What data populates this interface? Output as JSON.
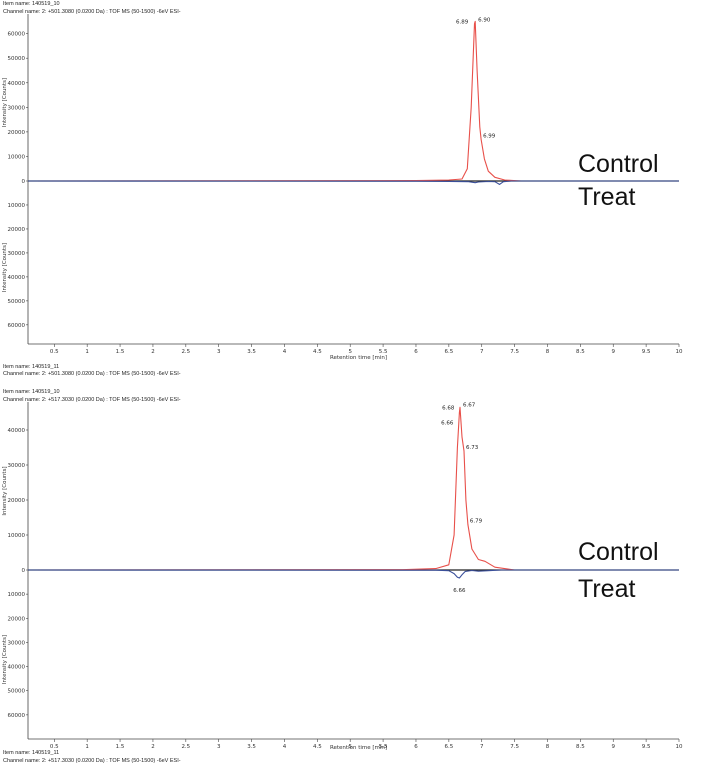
{
  "panel1": {
    "header": {
      "item": "Item name: 140519_10",
      "channel": "Channel name: 2: +501.3080 (0.0200 Da) : TOF MS (50-1500) -6eV ESI-"
    },
    "footer": {
      "item": "Item name: 140519_11",
      "channel": "Channel name: 2: +501.3080 (0.0200 Da) : TOF MS (50-1500) -6eV ESI-"
    },
    "legend_control": "Control",
    "legend_treat": "Treat"
  },
  "panel2": {
    "header": {
      "item": "Item name: 140519_10",
      "channel": "Channel name: 2: +517.3030 (0.0200 Da) : TOF MS (50-1500) -6eV ESI-"
    },
    "footer": {
      "item": "Item name: 140519_11",
      "channel": "Channel name: 2: +517.3030 (0.0200 Da) : TOF MS (50-1500) -6eV ESI-"
    },
    "legend_control": "Control",
    "legend_treat": "Treat"
  },
  "colors": {
    "control": "#e8504a",
    "treat": "#3a4f9a",
    "axis": "#444444",
    "baseline": "#222222"
  },
  "chart_data": [
    {
      "type": "line",
      "xlabel": "Retention time [min]",
      "ylabel": "Intensity [Counts]",
      "xlim": [
        0.1,
        10
      ],
      "ylim": [
        -68000,
        68000
      ],
      "x_ticks": [
        "0.5",
        "1",
        "1.5",
        "2",
        "2.5",
        "3",
        "3.5",
        "4",
        "4.5",
        "5",
        "5.5",
        "6",
        "6.5",
        "7",
        "7.5",
        "8",
        "8.5",
        "9",
        "9.5",
        "10"
      ],
      "y_ticks_up": [
        "60000",
        "50000",
        "40000",
        "30000",
        "20000",
        "10000",
        "0"
      ],
      "y_ticks_down": [
        "10000",
        "20000",
        "30000",
        "40000",
        "50000",
        "60000"
      ],
      "series": [
        {
          "name": "Control",
          "color": "#e8504a",
          "x": [
            0.1,
            6.0,
            6.5,
            6.7,
            6.78,
            6.84,
            6.89,
            6.9,
            6.93,
            6.97,
            6.99,
            7.04,
            7.1,
            7.2,
            7.35,
            7.6,
            10
          ],
          "y": [
            0,
            150,
            400,
            800,
            5000,
            30000,
            64000,
            65000,
            45000,
            22000,
            17000,
            9000,
            4000,
            1500,
            400,
            0,
            0
          ]
        },
        {
          "name": "Treat",
          "color": "#3a4f9a",
          "x": [
            0.1,
            6.0,
            6.5,
            6.8,
            6.9,
            6.95,
            7.1,
            7.2,
            7.27,
            7.33,
            7.45,
            10
          ],
          "y": [
            0,
            -100,
            -150,
            -300,
            -700,
            -400,
            -200,
            -300,
            -1400,
            -300,
            0,
            0
          ]
        }
      ],
      "peak_labels": [
        {
          "text": "6.89",
          "x": 6.84,
          "y": 65000
        },
        {
          "text": "6.90",
          "x": 6.9,
          "y": 65000
        },
        {
          "text": "6.99",
          "x": 6.99,
          "y": 17000
        }
      ]
    },
    {
      "type": "line",
      "xlabel": "Retention time [min]",
      "ylabel": "Intensity [Counts]",
      "xlim": [
        0.1,
        10
      ],
      "ylim": [
        -70000,
        48000
      ],
      "x_ticks": [
        "0.5",
        "1",
        "1.5",
        "2",
        "2.5",
        "3",
        "3.5",
        "4",
        "4.5",
        "5",
        "5.5",
        "6",
        "6.5",
        "7",
        "7.5",
        "8",
        "8.5",
        "9",
        "9.5",
        "10"
      ],
      "y_ticks_up": [
        "40000",
        "30000",
        "20000",
        "10000",
        "0"
      ],
      "y_ticks_down": [
        "10000",
        "20000",
        "30000",
        "40000",
        "50000",
        "60000"
      ],
      "series": [
        {
          "name": "Control",
          "color": "#e8504a",
          "x": [
            0.1,
            5.8,
            6.3,
            6.5,
            6.58,
            6.63,
            6.66,
            6.67,
            6.7,
            6.73,
            6.76,
            6.79,
            6.85,
            6.95,
            7.05,
            7.2,
            7.5,
            10
          ],
          "y": [
            0,
            100,
            400,
            1500,
            10000,
            35000,
            45000,
            46500,
            38000,
            34000,
            20000,
            13000,
            6000,
            3000,
            2500,
            800,
            0,
            0
          ]
        },
        {
          "name": "Treat",
          "color": "#3a4f9a",
          "x": [
            0.1,
            6.3,
            6.5,
            6.58,
            6.63,
            6.66,
            6.7,
            6.75,
            6.85,
            6.95,
            7.1,
            7.3,
            10
          ],
          "y": [
            0,
            -100,
            -300,
            -1500,
            -3000,
            -3300,
            -2000,
            -600,
            -200,
            -500,
            -300,
            0,
            0
          ]
        }
      ],
      "peak_labels": [
        {
          "text": "6.68",
          "x": 6.63,
          "y": 46500
        },
        {
          "text": "6.67",
          "x": 6.67,
          "y": 46500
        },
        {
          "text": "6.66",
          "x": 6.63,
          "y": 45000
        },
        {
          "text": "6.73",
          "x": 6.73,
          "y": 34000
        },
        {
          "text": "6.79",
          "x": 6.79,
          "y": 13000
        },
        {
          "text": "6.66",
          "x": 6.66,
          "y": -3300
        }
      ]
    }
  ]
}
